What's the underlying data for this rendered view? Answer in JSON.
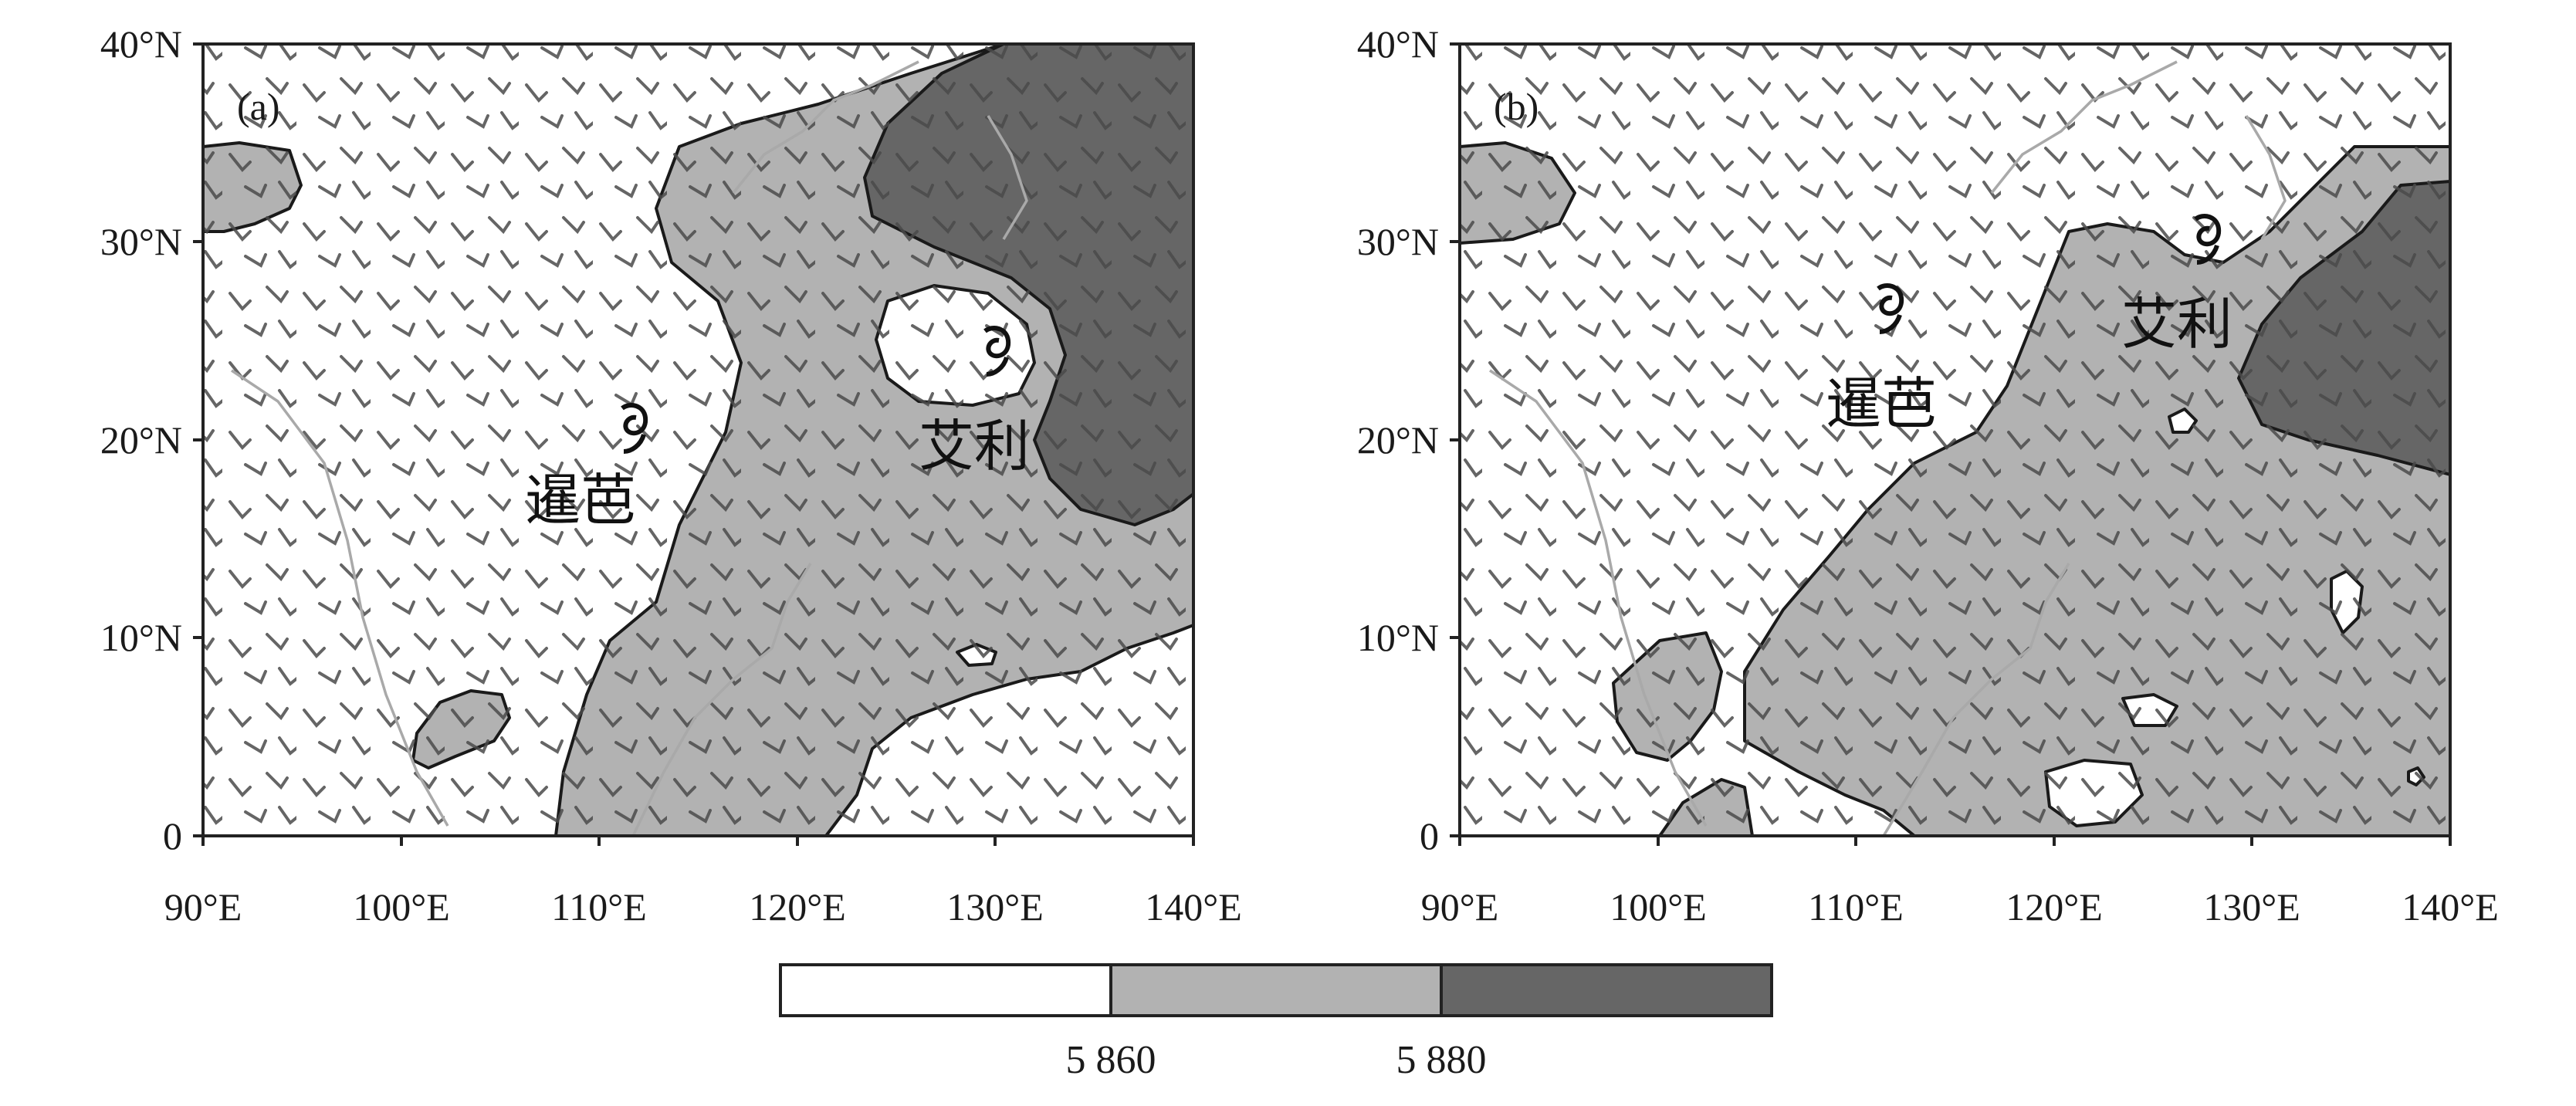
{
  "colors": {
    "below_5860": "#ffffff",
    "from_5860_to_5880": "#b2b2b2",
    "above_5880": "#666666",
    "wind_barb": "#4a4a4a",
    "coastline": "#a9a9a9"
  },
  "icons": {
    "typhoon_symbol": "typhoon-icon",
    "wind_barb": "wind-barb-icon"
  },
  "axes": {
    "lon_ticks": [
      "90°E",
      "100°E",
      "110°E",
      "120°E",
      "130°E",
      "140°E"
    ],
    "lat_ticks": [
      "40°N",
      "30°N",
      "20°N",
      "10°N",
      "0"
    ],
    "lon_range": [
      90,
      140
    ],
    "lat_range": [
      0,
      40
    ]
  },
  "panels": [
    {
      "label": "(a)",
      "typhoons": [
        {
          "name": "暹芭",
          "lon": 111,
          "lat": 20.3
        },
        {
          "name": "艾利",
          "lon": 130,
          "lat": 24.5
        }
      ]
    },
    {
      "label": "(b)",
      "typhoons": [
        {
          "name": "暹芭",
          "lon": 111,
          "lat": 26.3
        },
        {
          "name": "艾利",
          "lon": 127.5,
          "lat": 29.8
        }
      ]
    }
  ],
  "colorbar": {
    "labels": [
      "5 860",
      "5 880"
    ],
    "bins": [
      "below 5860",
      "5860-5880",
      "above 5880"
    ]
  }
}
